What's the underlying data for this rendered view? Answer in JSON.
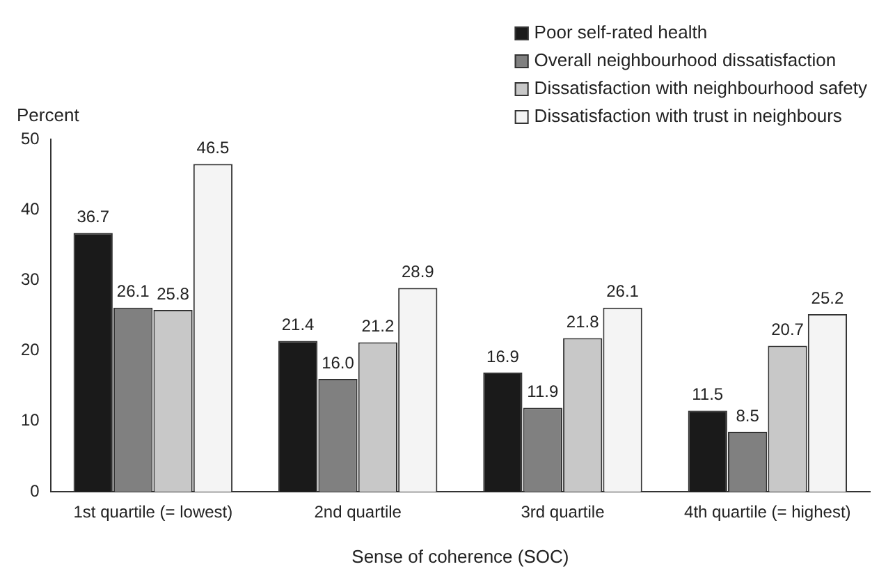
{
  "chart_data": {
    "type": "bar",
    "ylabel": "Percent",
    "xlabel": "Sense of coherence (SOC)",
    "categories": [
      "1st quartile (= lowest)",
      "2nd quartile",
      "3rd quartile",
      "4th quartile (= highest)"
    ],
    "series": [
      {
        "name": "Poor self-rated health",
        "color": "#1a1a1a",
        "values": [
          36.7,
          21.4,
          16.9,
          11.5
        ]
      },
      {
        "name": "Overall neighbourhood dissatisfaction",
        "color": "#808080",
        "values": [
          26.1,
          16.0,
          11.9,
          8.5
        ]
      },
      {
        "name": "Dissatisfaction with neighbourhood safety",
        "color": "#c8c8c8",
        "values": [
          25.8,
          21.2,
          21.8,
          20.7
        ]
      },
      {
        "name": "Dissatisfaction with trust in neighbours",
        "color": "#f4f4f4",
        "values": [
          46.5,
          28.9,
          26.1,
          25.2
        ]
      }
    ],
    "value_labels": [
      [
        "36.7",
        "21.4",
        "16.9",
        "11.5"
      ],
      [
        "26.1",
        "16.0",
        "11.9",
        "8.5"
      ],
      [
        "25.8",
        "21.2",
        "21.8",
        "20.7"
      ],
      [
        "46.5",
        "28.9",
        "26.1",
        "25.2"
      ]
    ],
    "ylim": [
      0,
      50
    ],
    "yticks": [
      0,
      10,
      20,
      30,
      40,
      50
    ],
    "grid": false,
    "legend": "top right"
  }
}
